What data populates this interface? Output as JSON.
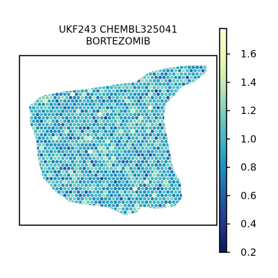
{
  "figure": {
    "title_line1": "UKF243 CHEMBL325041",
    "title_line2": "BORTEZOMIB"
  },
  "chart_data": {
    "type": "heatmap",
    "title": "UKF243 CHEMBL325041 BORTEZOMIB",
    "xlabel": "",
    "ylabel": "",
    "grid": false,
    "colormap": "YlGnBu_r",
    "colorbar": {
      "vmin": 0.2,
      "vmax": 1.78,
      "ticks": [
        0.2,
        0.4,
        0.6,
        0.8,
        1.0,
        1.2,
        1.4,
        1.6
      ],
      "tick_labels": [
        "0.2",
        "0.4",
        "0.6",
        "0.8",
        "1.0",
        "1.2",
        "1.4",
        "1.6"
      ],
      "placement": "right"
    },
    "spots": {
      "shape": "hexagonal spatial spots",
      "typical_value_range": [
        0.6,
        1.2
      ],
      "dominant_color": "#2c8fbf"
    }
  },
  "colors": {
    "frame": "#000000",
    "colormap_stops": [
      "#081d58",
      "#253494",
      "#225ea8",
      "#1d91c0",
      "#41b6c4",
      "#7fcdbb",
      "#c7e9b4",
      "#edf8b1",
      "#ffffd9"
    ]
  }
}
